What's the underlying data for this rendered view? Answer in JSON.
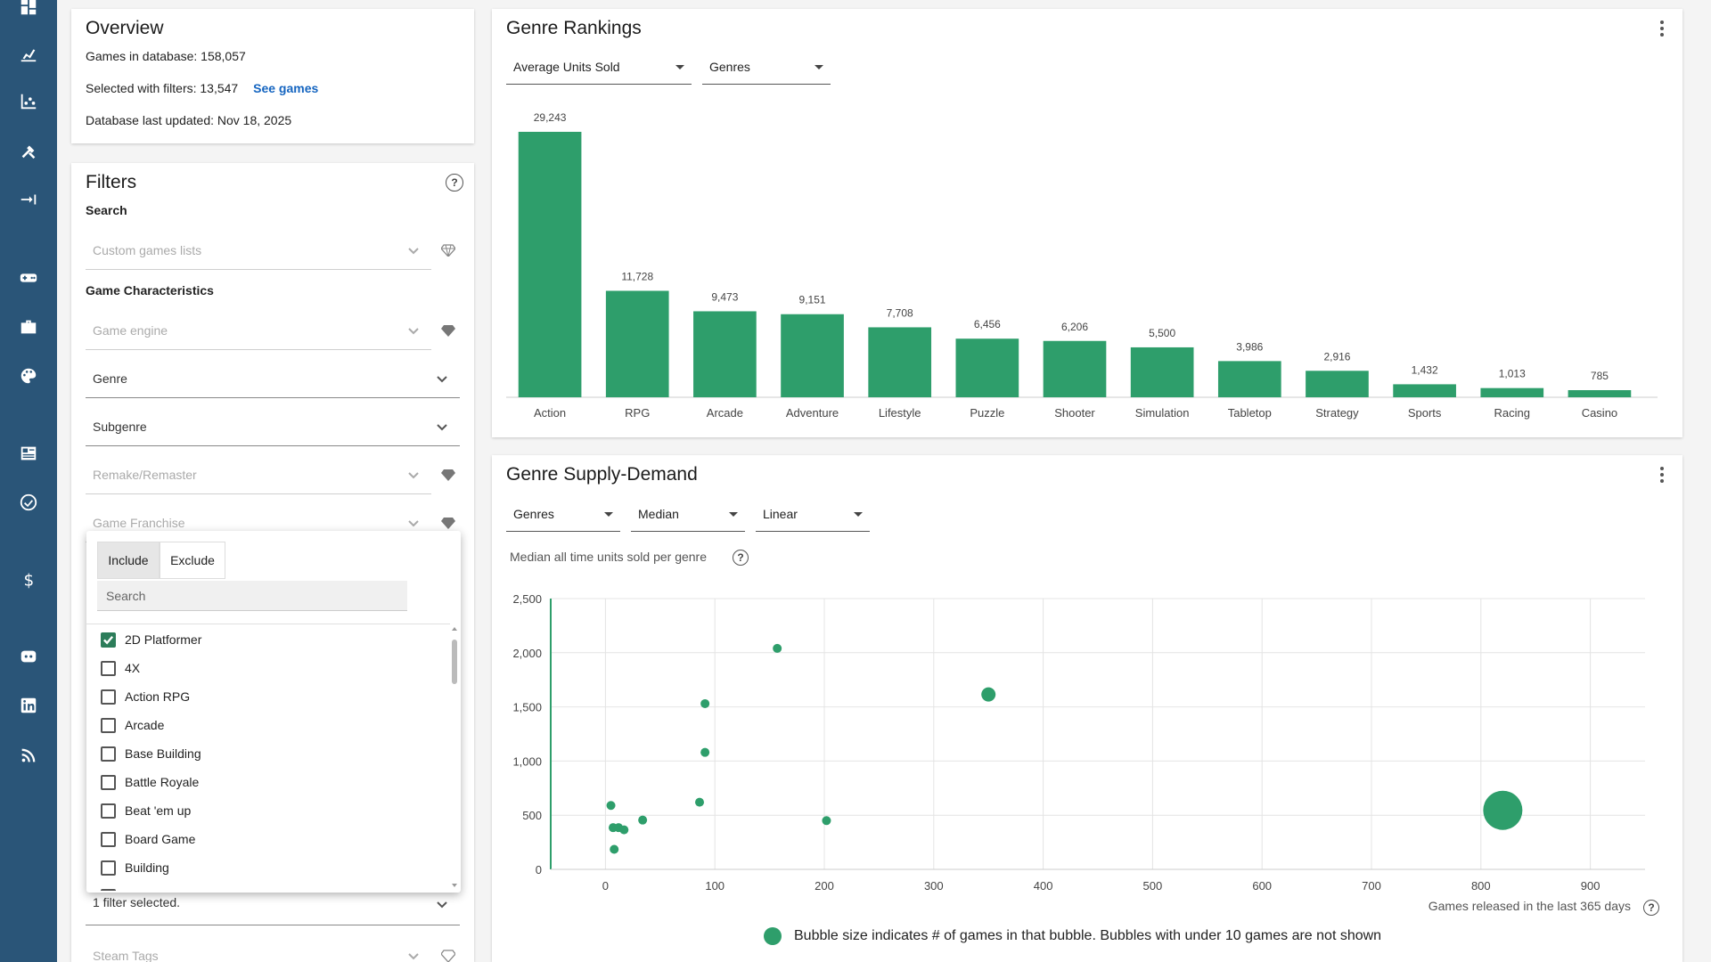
{
  "rail": {
    "icons": [
      "dashboard-icon",
      "trend-chart-icon",
      "scatter-chart-icon",
      "tools-icon",
      "compare-icon",
      "gamepad-icon",
      "briefcase-icon",
      "palette-icon",
      "newspaper-icon",
      "clock-check-icon",
      "dollar-icon",
      "discord-icon",
      "linkedin-icon",
      "rss-icon"
    ]
  },
  "overview": {
    "title": "Overview",
    "games_in_db": "Games in database: 158,057",
    "selected": "Selected with filters: 13,547",
    "see_games": "See games",
    "updated": "Database last updated: Nov 18, 2025"
  },
  "filters": {
    "title": "Filters",
    "search_section": "Search",
    "custom_lists": "Custom games lists",
    "characteristics_section": "Game Characteristics",
    "game_engine": "Game engine",
    "genre": "Genre",
    "subgenre": "Subgenre",
    "remake": "Remake/Remaster",
    "franchise": "Game Franchise",
    "filter_selected": "1 filter selected.",
    "steam_tags": "Steam Tags"
  },
  "dropdown": {
    "include": "Include",
    "exclude": "Exclude",
    "search_placeholder": "Search",
    "options": [
      {
        "label": "2D Platformer",
        "checked": true
      },
      {
        "label": "4X",
        "checked": false
      },
      {
        "label": "Action RPG",
        "checked": false
      },
      {
        "label": "Arcade",
        "checked": false
      },
      {
        "label": "Base Building",
        "checked": false
      },
      {
        "label": "Battle Royale",
        "checked": false
      },
      {
        "label": "Beat 'em up",
        "checked": false
      },
      {
        "label": "Board Game",
        "checked": false
      },
      {
        "label": "Building",
        "checked": false
      },
      {
        "label": "Card Game",
        "checked": false
      }
    ]
  },
  "rankings": {
    "title": "Genre Rankings",
    "metric": "Average Units Sold",
    "group": "Genres"
  },
  "supply": {
    "title": "Genre Supply-Demand",
    "group": "Genres",
    "stat": "Median",
    "scale": "Linear",
    "subtitle": "Median all time units sold per genre",
    "xlabel": "Games released in the last 365 days",
    "legend": "Bubble size indicates # of games in that bubble. Bubbles with under 10 games are not shown"
  },
  "chart_data": [
    {
      "type": "bar",
      "title": "Genre Rankings",
      "categories": [
        "Action",
        "RPG",
        "Arcade",
        "Adventure",
        "Lifestyle",
        "Puzzle",
        "Shooter",
        "Simulation",
        "Tabletop",
        "Strategy",
        "Sports",
        "Racing",
        "Casino"
      ],
      "values": [
        29243,
        11728,
        9473,
        9151,
        7708,
        6456,
        6206,
        5500,
        3986,
        2916,
        1432,
        1013,
        785
      ],
      "labels": [
        "29,243",
        "11,728",
        "9,473",
        "9,151",
        "7,708",
        "6,456",
        "6,206",
        "5,500",
        "3,986",
        "2,916",
        "1,432",
        "1,013",
        "785"
      ],
      "color": "#2e9e6b"
    },
    {
      "type": "scatter",
      "title": "Genre Supply-Demand",
      "xlabel": "Games released in the last 365 days",
      "ylabel": "Median all time units sold per genre",
      "xlim": [
        -50,
        950
      ],
      "ylim": [
        0,
        2500
      ],
      "xticks": [
        0,
        100,
        200,
        300,
        400,
        500,
        600,
        700,
        800,
        900
      ],
      "xtick_labels": [
        "0",
        "100",
        "200",
        "300",
        "400",
        "500",
        "600",
        "700",
        "800",
        "900"
      ],
      "yticks": [
        0,
        500,
        1000,
        1500,
        2000,
        2500
      ],
      "ytick_labels": [
        "0",
        "500",
        "1,000",
        "1,500",
        "2,000",
        "2,500"
      ],
      "color": "#2e9e6b",
      "points": [
        {
          "x": 157,
          "y": 2040,
          "size": 1
        },
        {
          "x": 91,
          "y": 1530,
          "size": 1
        },
        {
          "x": 91,
          "y": 1080,
          "size": 1
        },
        {
          "x": 86,
          "y": 620,
          "size": 1
        },
        {
          "x": 5,
          "y": 590,
          "size": 1
        },
        {
          "x": 34,
          "y": 455,
          "size": 1
        },
        {
          "x": 202,
          "y": 450,
          "size": 1
        },
        {
          "x": 7,
          "y": 385,
          "size": 1
        },
        {
          "x": 12,
          "y": 385,
          "size": 1
        },
        {
          "x": 17,
          "y": 365,
          "size": 1
        },
        {
          "x": 8,
          "y": 185,
          "size": 1
        },
        {
          "x": 350,
          "y": 1615,
          "size": 4
        },
        {
          "x": 820,
          "y": 545,
          "size": 18
        }
      ]
    }
  ]
}
